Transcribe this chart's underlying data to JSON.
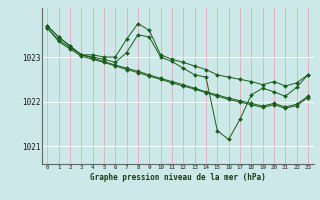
{
  "xlabel": "Graphe pression niveau de la mer (hPa)",
  "bg_color": "#cce8e8",
  "line_color": "#1a5c1a",
  "x": [
    0,
    1,
    2,
    3,
    4,
    5,
    6,
    7,
    8,
    9,
    10,
    11,
    12,
    13,
    14,
    15,
    16,
    17,
    18,
    19,
    20,
    21,
    22,
    23
  ],
  "series_jagged": [
    1023.7,
    1023.45,
    1023.25,
    1023.05,
    1023.05,
    1023.0,
    1023.0,
    1023.4,
    1023.75,
    1023.6,
    1023.05,
    1022.95,
    1022.88,
    1022.8,
    1022.72,
    1022.6,
    1022.55,
    1022.5,
    1022.45,
    1022.38,
    1022.45,
    1022.35,
    1022.42,
    1022.6
  ],
  "series_drop": [
    1023.7,
    1023.45,
    1023.25,
    1023.05,
    1023.0,
    1022.95,
    1022.88,
    1023.1,
    1023.5,
    1023.45,
    1023.0,
    1022.9,
    1022.75,
    1022.6,
    1022.55,
    1021.35,
    1021.15,
    1021.6,
    1022.15,
    1022.3,
    1022.22,
    1022.12,
    1022.32,
    1022.6
  ],
  "series_smooth1": [
    1023.65,
    1023.38,
    1023.22,
    1023.05,
    1022.98,
    1022.9,
    1022.82,
    1022.75,
    1022.68,
    1022.6,
    1022.52,
    1022.45,
    1022.38,
    1022.3,
    1022.22,
    1022.15,
    1022.08,
    1022.02,
    1021.96,
    1021.9,
    1021.96,
    1021.88,
    1021.94,
    1022.12
  ],
  "series_smooth2": [
    1023.65,
    1023.35,
    1023.18,
    1023.02,
    1022.95,
    1022.88,
    1022.8,
    1022.72,
    1022.65,
    1022.57,
    1022.5,
    1022.42,
    1022.35,
    1022.28,
    1022.2,
    1022.12,
    1022.05,
    1021.99,
    1021.93,
    1021.87,
    1021.93,
    1021.85,
    1021.91,
    1022.09
  ],
  "yticks": [
    1021,
    1022,
    1023
  ],
  "ylim": [
    1020.6,
    1024.1
  ],
  "xlim": [
    -0.5,
    23.5
  ],
  "figwidth": 3.2,
  "figheight": 2.0,
  "dpi": 100
}
